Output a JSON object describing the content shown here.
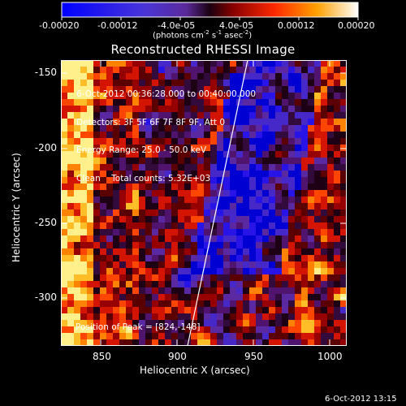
{
  "colorbar": {
    "tick_labels": [
      "-0.00020",
      "-0.00012",
      "-4.0e-05",
      "4.0e-05",
      "0.00012",
      "0.00020"
    ],
    "unit_label": "(photons cm",
    "unit_exp1": "-2",
    "unit_mid": " s",
    "unit_exp2": "-1",
    "unit_end": " asec",
    "unit_exp3": "-2",
    "unit_close": ")"
  },
  "title": "Reconstructed RHESSI Image",
  "info": {
    "line1": "6-Oct-2012 00:36:28.000 to 00:40:00.000",
    "line2": "Detectors: 3F 5F 6F 7F 8F 9F, Att 0",
    "line3": "Energy Range: 25.0 - 50.0 keV",
    "line4": "Clean    Total counts: 5.32E+03"
  },
  "peak_text": "Position of Peak = [824,-148]",
  "x_axis": {
    "label": "Heliocentric X (arcsec)",
    "ticks": [
      "850",
      "900",
      "950",
      "1000"
    ]
  },
  "y_axis": {
    "label": "Heliocentric Y (arcsec)",
    "ticks": [
      "-150",
      "-200",
      "-250",
      "-300"
    ]
  },
  "footer_timestamp": "6-Oct-2012 13:15",
  "colors": {
    "background": "#000000",
    "limb_line": "#ffffff",
    "negative_low": "#0000ff",
    "positive_high": "#ffff66"
  }
}
